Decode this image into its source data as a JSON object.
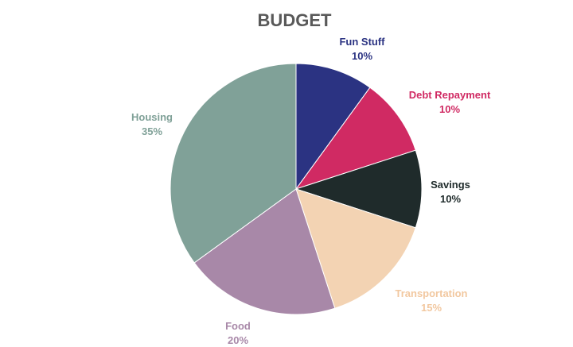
{
  "chart_data": {
    "type": "pie",
    "title": "BUDGET",
    "slices": [
      {
        "label": "Fun Stuff",
        "value": 10,
        "value_label": "10%",
        "color": "#2b3382"
      },
      {
        "label": "Debt Repayment",
        "value": 10,
        "value_label": "10%",
        "color": "#d02a63"
      },
      {
        "label": "Savings",
        "value": 10,
        "value_label": "10%",
        "color": "#1f2b2b"
      },
      {
        "label": "Transportation",
        "value": 15,
        "value_label": "15%",
        "color": "#f3d3b3"
      },
      {
        "label": "Food",
        "value": 20,
        "value_label": "20%",
        "color": "#a888a8"
      },
      {
        "label": "Housing",
        "value": 35,
        "value_label": "35%",
        "color": "#80a198"
      }
    ],
    "start_angle": "12 o'clock",
    "direction": "clockwise",
    "label_colors": {
      "Fun Stuff": "#2b3382",
      "Debt Repayment": "#d02a63",
      "Savings": "#1f2b2b",
      "Transportation": "#f2c8a0",
      "Food": "#a888a8",
      "Housing": "#80a198"
    }
  }
}
